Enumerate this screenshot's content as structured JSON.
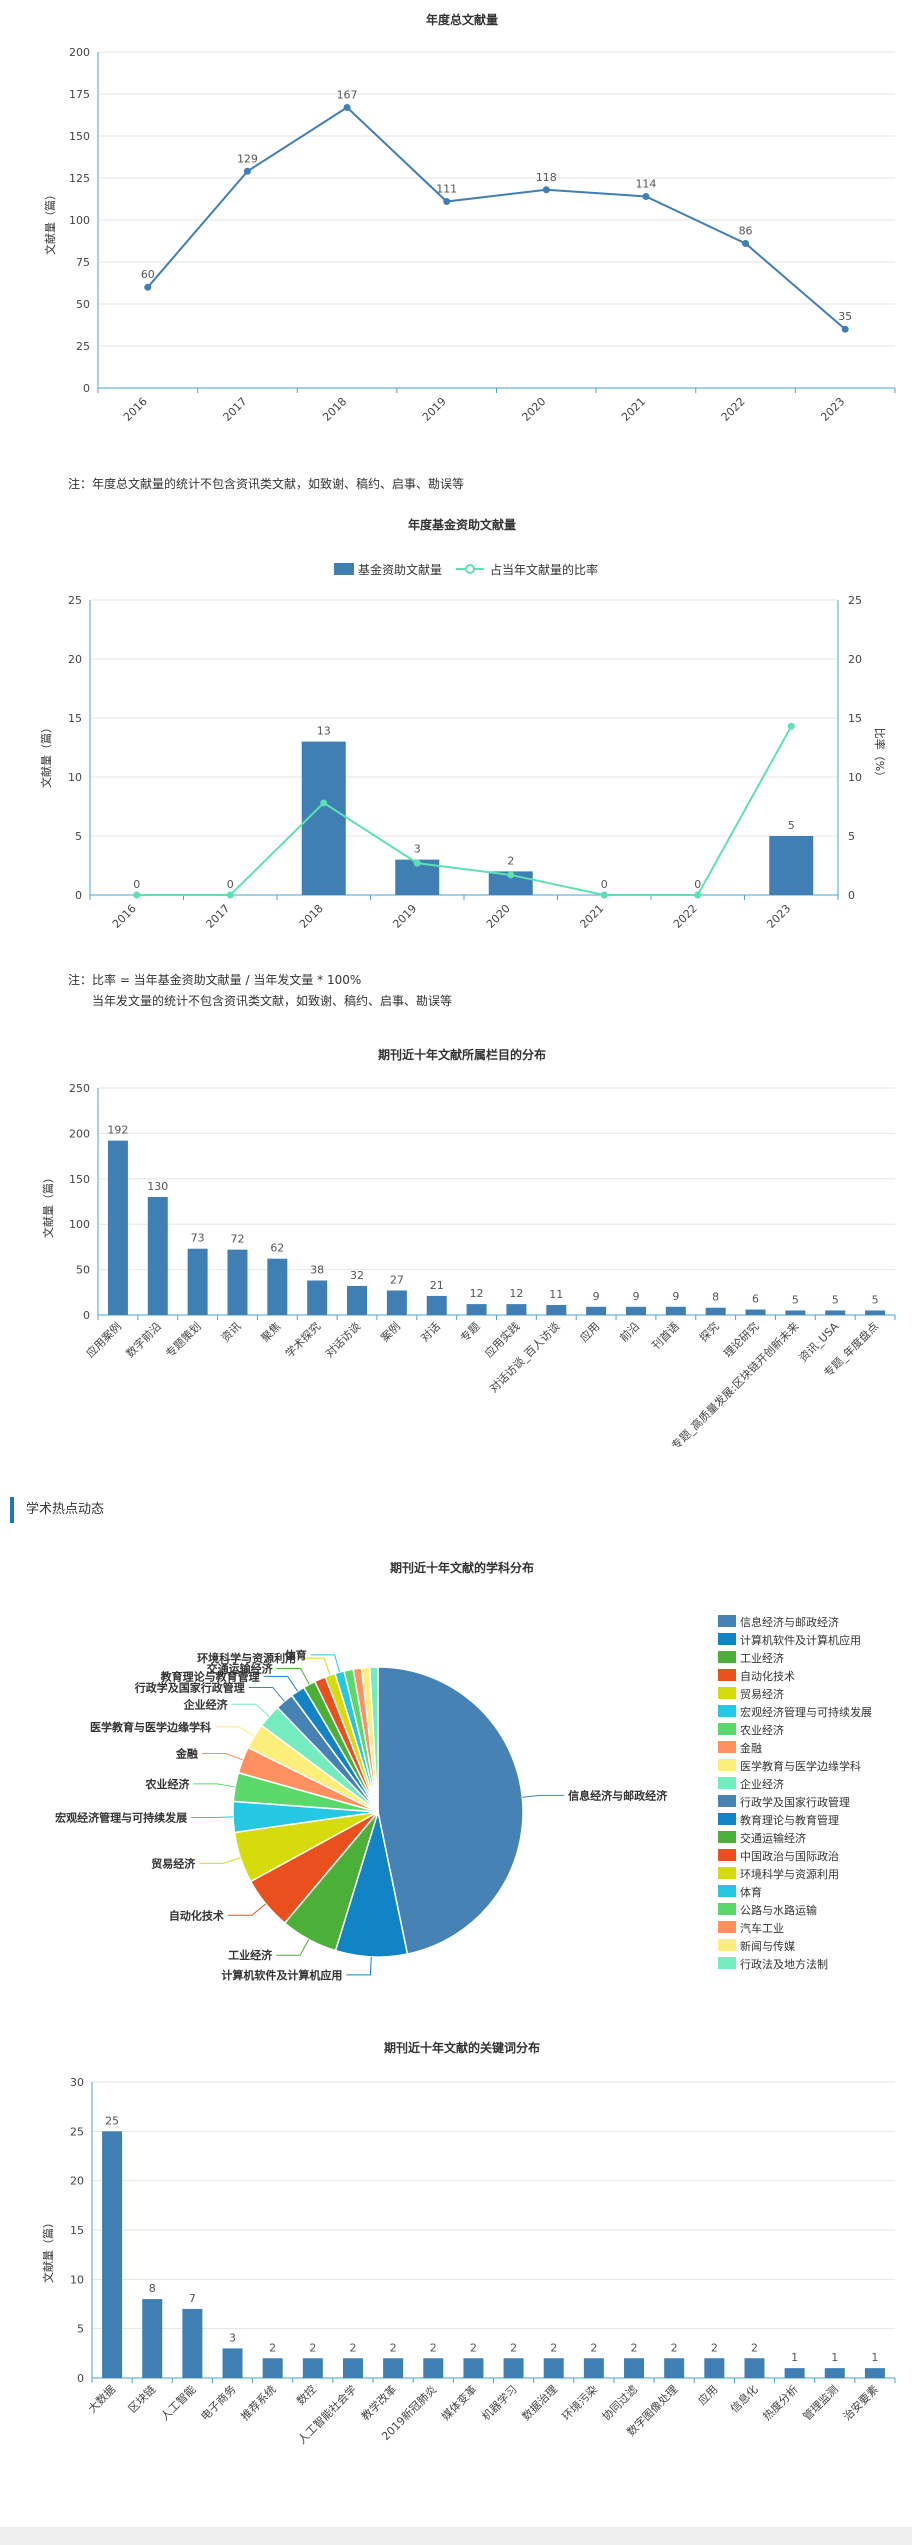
{
  "colors": {
    "primary": "#3f7fb4",
    "fund_line": "#5ee0b4",
    "section_accent": "#1f77c4",
    "axis": "#4aa3d6",
    "grid": "#e6e6e6"
  },
  "charts": {
    "annual": {
      "title": "年度总文献量",
      "ylabel": "文献量（篇）",
      "note": "注：年度总文献量的统计不包含资讯类文献，如致谢、稿约、启事、勘误等"
    },
    "fund": {
      "title": "年度基金资助文献量",
      "ylabel_left": "文献量（篇）",
      "ylabel_right": "比率（%）",
      "legend_bar": "基金资助文献量",
      "legend_line": "占当年文献量的比率",
      "note_line1": "注：比率 = 当年基金资助文献量 / 当年发文量 * 100%",
      "note_line2": "当年发文量的统计不包含资讯类文献，如致谢、稿约、启事、勘误等"
    },
    "column": {
      "title": "期刊近十年文献所属栏目的分布",
      "ylabel": "文献量（篇）"
    },
    "section": {
      "title": "学术热点动态"
    },
    "subject": {
      "title": "期刊近十年文献的学科分布"
    },
    "keyword": {
      "title": "期刊近十年文献的关键词分布",
      "ylabel": "文献量（篇）"
    }
  },
  "chart_data": [
    {
      "id": "annual",
      "type": "line",
      "title": "年度总文献量",
      "ylabel": "文献量（篇）",
      "categories": [
        "2016",
        "2017",
        "2018",
        "2019",
        "2020",
        "2021",
        "2022",
        "2023"
      ],
      "values": [
        60,
        129,
        167,
        111,
        118,
        114,
        86,
        35
      ],
      "ylim": [
        0,
        200
      ],
      "yticks": [
        0,
        25,
        50,
        75,
        100,
        125,
        150,
        175,
        200
      ],
      "grid": true
    },
    {
      "id": "fund",
      "type": "bar",
      "title": "年度基金资助文献量",
      "categories": [
        "2016",
        "2017",
        "2018",
        "2019",
        "2020",
        "2021",
        "2022",
        "2023"
      ],
      "series": [
        {
          "name": "基金资助文献量",
          "type": "bar",
          "values": [
            0,
            0,
            13,
            3,
            2,
            0,
            0,
            5
          ]
        },
        {
          "name": "占当年文献量的比率",
          "type": "line",
          "values": [
            0,
            0,
            7.8,
            2.7,
            1.7,
            0,
            0,
            14.3
          ]
        }
      ],
      "ylim": [
        0,
        25
      ],
      "yticks": [
        0,
        5,
        10,
        15,
        20,
        25
      ],
      "y2lim": [
        0,
        25
      ],
      "legend": "top",
      "grid": true
    },
    {
      "id": "column",
      "type": "bar",
      "title": "期刊近十年文献所属栏目的分布",
      "ylabel": "文献量（篇）",
      "categories": [
        "应用案例",
        "数字前沿",
        "专题策划",
        "资讯",
        "聚焦",
        "学术探究",
        "对话访谈",
        "案例",
        "对话",
        "专题",
        "应用实践",
        "对话访谈_百人访谈",
        "应用",
        "前沿",
        "刊首语",
        "探究",
        "理论研究",
        "专题_高质量发展:区块链开创新未来",
        "资讯_USA",
        "专题_年度盘点"
      ],
      "values": [
        192,
        130,
        73,
        72,
        62,
        38,
        32,
        27,
        21,
        12,
        12,
        11,
        9,
        9,
        9,
        8,
        6,
        5,
        5,
        5
      ],
      "ylim": [
        0,
        250
      ],
      "yticks": [
        0,
        50,
        100,
        150,
        200,
        250
      ],
      "grid": true
    },
    {
      "id": "subject",
      "type": "pie",
      "title": "期刊近十年文献的学科分布",
      "legend": "right",
      "slices": [
        {
          "label": "信息经济与邮政经济",
          "value": 410,
          "color": "#4682b4"
        },
        {
          "label": "计算机软件及计算机应用",
          "value": 70,
          "color": "#1283c4"
        },
        {
          "label": "工业经济",
          "value": 56,
          "color": "#4caf37"
        },
        {
          "label": "自动化技术",
          "value": 52,
          "color": "#e9501e"
        },
        {
          "label": "贸易经济",
          "value": 50,
          "color": "#d6dc0b"
        },
        {
          "label": "宏观经济管理与可持续发展",
          "value": 30,
          "color": "#25c7e3"
        },
        {
          "label": "农业经济",
          "value": 28,
          "color": "#5ad86a"
        },
        {
          "label": "金融",
          "value": 26,
          "color": "#ff9160"
        },
        {
          "label": "医学教育与医学边缘学科",
          "value": 25,
          "color": "#fbee7a"
        },
        {
          "label": "企业经济",
          "value": 23,
          "color": "#75ecc0"
        },
        {
          "label": "行政学及国家行政管理",
          "value": 18,
          "color": "#4682b4"
        },
        {
          "label": "教育理论与教育管理",
          "value": 14,
          "color": "#1283c4"
        },
        {
          "label": "交通运输经济",
          "value": 12,
          "color": "#4caf37"
        },
        {
          "label": "中国政治与国际政治",
          "value": 11,
          "color": "#e9501e"
        },
        {
          "label": "环境科学与资源利用",
          "value": 10,
          "color": "#d6dc0b"
        },
        {
          "label": "体育",
          "value": 9,
          "color": "#25c7e3"
        },
        {
          "label": "公路与水路运输",
          "value": 9,
          "color": "#5ad86a"
        },
        {
          "label": "汽车工业",
          "value": 8,
          "color": "#ff9160"
        },
        {
          "label": "新闻与传媒",
          "value": 8,
          "color": "#fbee7a"
        },
        {
          "label": "行政法及地方法制",
          "value": 8,
          "color": "#75ecc0"
        }
      ],
      "callouts": [
        "信息经济与邮政经济",
        "计算机软件及计算机应用",
        "工业经济",
        "自动化技术",
        "贸易经济",
        "宏观经济管理与可持续发展",
        "农业经济",
        "金融",
        "医学教育与医学边缘学科",
        "企业经济",
        "行政学及国家行政管理",
        "教育理论与教育管理",
        "交通运输经济",
        "环境科学与资源利用",
        "体育"
      ]
    },
    {
      "id": "keyword",
      "type": "bar",
      "title": "期刊近十年文献的关键词分布",
      "ylabel": "文献量（篇）",
      "categories": [
        "大数据",
        "区块链",
        "人工智能",
        "电子商务",
        "推荐系统",
        "数控",
        "人工智能社会学",
        "教学改革",
        "2019新冠肺炎",
        "媒体变革",
        "机器学习",
        "数据治理",
        "环境污染",
        "协同过滤",
        "数字图像处理",
        "应用",
        "信息化",
        "热度分析",
        "管理监测",
        "治安要素"
      ],
      "values": [
        25,
        8,
        7,
        3,
        2,
        2,
        2,
        2,
        2,
        2,
        2,
        2,
        2,
        2,
        2,
        2,
        2,
        1,
        1,
        1
      ],
      "ylim": [
        0,
        30
      ],
      "yticks": [
        0,
        5,
        10,
        15,
        20,
        25,
        30
      ],
      "grid": true
    }
  ]
}
